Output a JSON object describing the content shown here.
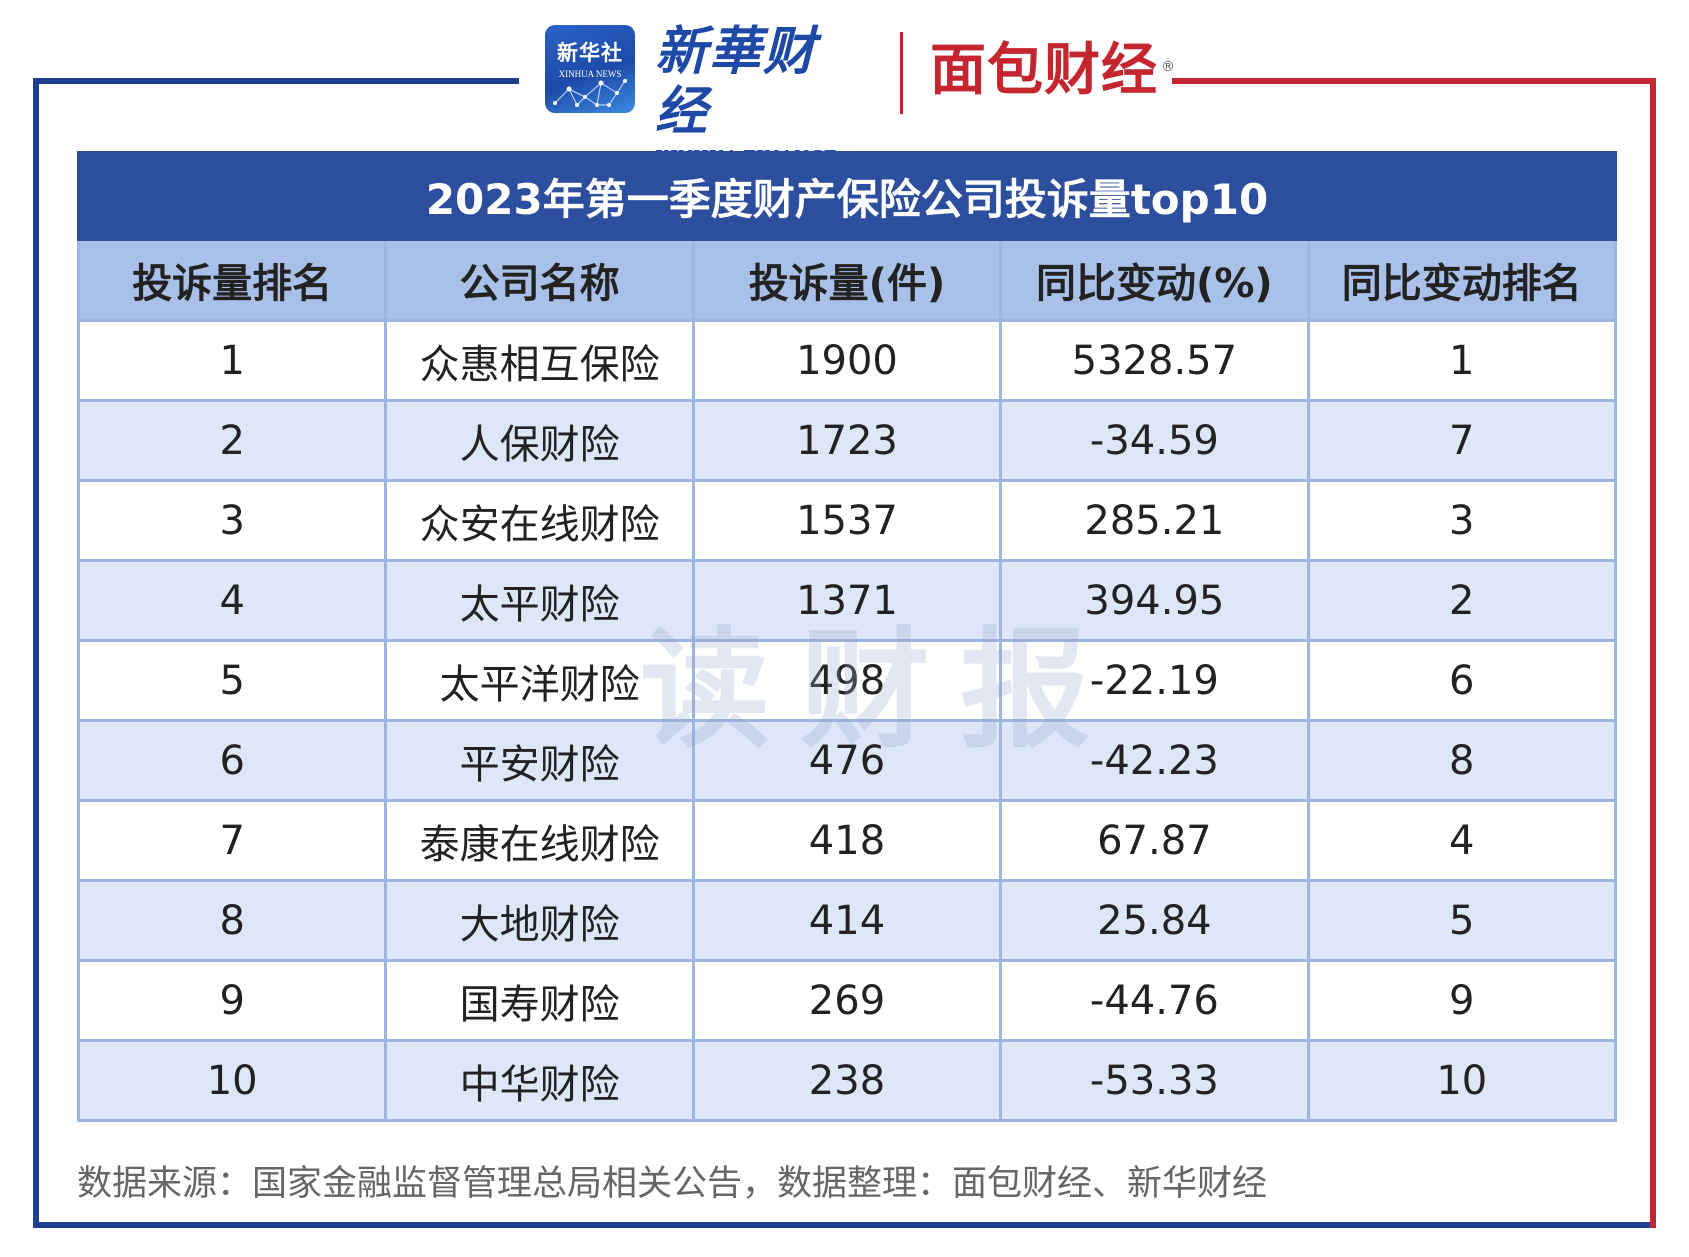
{
  "logos": {
    "xinhua_badge_cn": "新华社",
    "xinhua_badge_en": "XINHUA NEWS",
    "xinhua_finance_cn": "新華财经",
    "xinhua_finance_en": "XINHUA FINANCE",
    "mianbao": "面包财经",
    "registered_mark": "®"
  },
  "colors": {
    "brand_blue": "#1f3f8f",
    "brand_red": "#c4252e",
    "title_bar": "#2c4e9c",
    "header_bg": "#a9c1e8",
    "stripe_bg": "#dde7f7"
  },
  "table": {
    "title": "2023年第一季度财产保险公司投诉量top10",
    "headers": [
      "投诉量排名",
      "公司名称",
      "投诉量(件)",
      "同比变动(%)",
      "同比变动排名"
    ],
    "rows": [
      [
        "1",
        "众惠相互保险",
        "1900",
        "5328.57",
        "1"
      ],
      [
        "2",
        "人保财险",
        "1723",
        "-34.59",
        "7"
      ],
      [
        "3",
        "众安在线财险",
        "1537",
        "285.21",
        "3"
      ],
      [
        "4",
        "太平财险",
        "1371",
        "394.95",
        "2"
      ],
      [
        "5",
        "太平洋财险",
        "498",
        "-22.19",
        "6"
      ],
      [
        "6",
        "平安财险",
        "476",
        "-42.23",
        "8"
      ],
      [
        "7",
        "泰康在线财险",
        "418",
        "67.87",
        "4"
      ],
      [
        "8",
        "大地财险",
        "414",
        "25.84",
        "5"
      ],
      [
        "9",
        "国寿财险",
        "269",
        "-44.76",
        "9"
      ],
      [
        "10",
        "中华财险",
        "238",
        "-53.33",
        "10"
      ]
    ]
  },
  "watermark": "读财报",
  "source_note": "数据来源：国家金融监督管理总局相关公告，数据整理：面包财经、新华财经"
}
